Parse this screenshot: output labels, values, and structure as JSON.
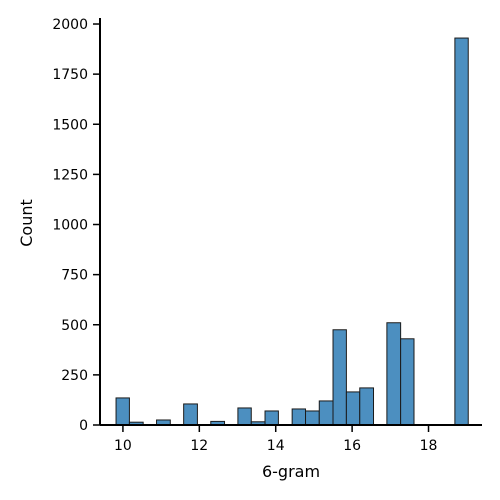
{
  "chart_data": {
    "type": "bar",
    "xlabel": "6-gram",
    "ylabel": "Count",
    "xlim": [
      9.4,
      19.4
    ],
    "ylim": [
      0,
      2030
    ],
    "x_ticks": [
      10,
      12,
      14,
      16,
      18
    ],
    "y_ticks": [
      0,
      250,
      500,
      750,
      1000,
      1250,
      1500,
      1750,
      2000
    ],
    "bar_color": "#4c8fc0",
    "edge_color": "#1a1a1a",
    "grid": false,
    "bins": [
      {
        "x0": 9.82,
        "x1": 10.17,
        "count": 135
      },
      {
        "x0": 10.17,
        "x1": 10.53,
        "count": 14
      },
      {
        "x0": 10.88,
        "x1": 11.24,
        "count": 25
      },
      {
        "x0": 11.59,
        "x1": 11.95,
        "count": 105
      },
      {
        "x0": 12.3,
        "x1": 12.66,
        "count": 18
      },
      {
        "x0": 13.01,
        "x1": 13.36,
        "count": 85
      },
      {
        "x0": 13.36,
        "x1": 13.72,
        "count": 16
      },
      {
        "x0": 13.72,
        "x1": 14.07,
        "count": 70
      },
      {
        "x0": 14.43,
        "x1": 14.78,
        "count": 80
      },
      {
        "x0": 14.78,
        "x1": 15.14,
        "count": 70
      },
      {
        "x0": 15.14,
        "x1": 15.5,
        "count": 120
      },
      {
        "x0": 15.5,
        "x1": 15.85,
        "count": 475
      },
      {
        "x0": 15.85,
        "x1": 16.2,
        "count": 165
      },
      {
        "x0": 16.2,
        "x1": 16.56,
        "count": 185
      },
      {
        "x0": 16.91,
        "x1": 17.27,
        "count": 510
      },
      {
        "x0": 17.27,
        "x1": 17.62,
        "count": 430
      },
      {
        "x0": 18.69,
        "x1": 19.04,
        "count": 1930
      }
    ]
  }
}
